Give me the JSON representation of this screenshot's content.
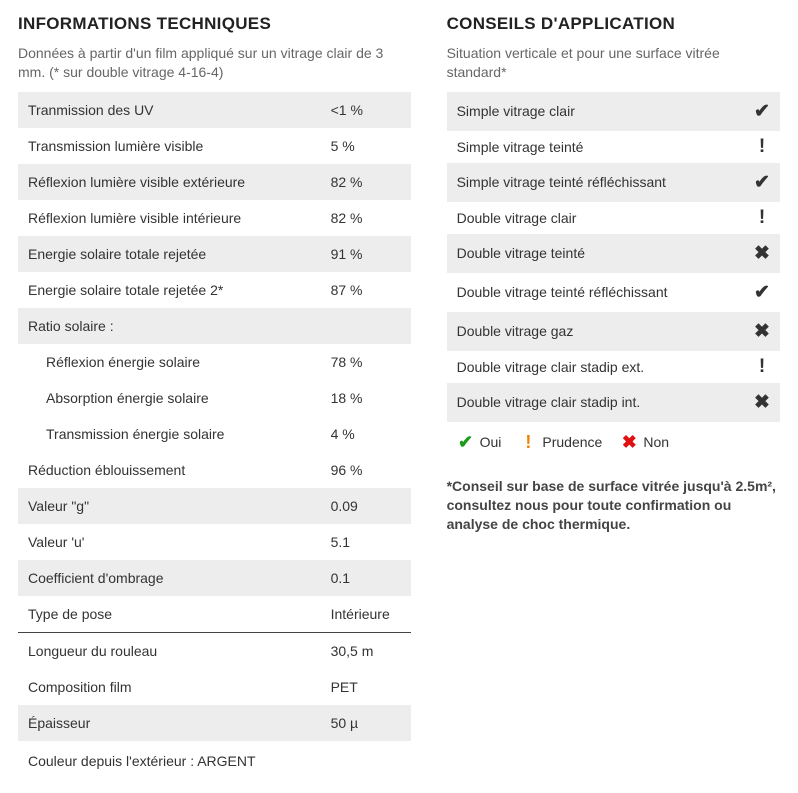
{
  "colors": {
    "yes": "#1a9b1a",
    "warn": "#f08000",
    "no": "#e01010",
    "zebra": "#ededed",
    "text": "#333333",
    "subtext": "#666666",
    "divider": "#444444"
  },
  "left": {
    "title": "INFORMATIONS TECHNIQUES",
    "subtitle": "Données à partir d'un film appliqué sur un vitrage clair de 3 mm. (* sur double vitrage 4-16-4)",
    "rows": [
      {
        "label": "Tranmission des UV",
        "value": "<1 %",
        "zebra": true
      },
      {
        "label": "Transmission lumière visible",
        "value": "5 %",
        "zebra": false
      },
      {
        "label": "Réflexion lumière visible extérieure",
        "value": "82 %",
        "zebra": true
      },
      {
        "label": "Réflexion lumière visible intérieure",
        "value": "82 %",
        "zebra": false
      },
      {
        "label": "Energie solaire totale rejetée",
        "value": "91 %",
        "zebra": true
      },
      {
        "label": "Energie solaire totale rejetée 2*",
        "value": "87 %",
        "zebra": false
      },
      {
        "label": "Ratio solaire :",
        "value": "",
        "zebra": true
      },
      {
        "label": "Réflexion énergie solaire",
        "value": "78 %",
        "zebra": false,
        "indent": true
      },
      {
        "label": "Absorption énergie solaire",
        "value": "18 %",
        "zebra": false,
        "indent": true
      },
      {
        "label": "Transmission énergie solaire",
        "value": "4 %",
        "zebra": false,
        "indent": true
      },
      {
        "label": "Réduction éblouissement",
        "value": "96 %",
        "zebra": false
      },
      {
        "label": "Valeur \"g\"",
        "value": "0.09",
        "zebra": true
      },
      {
        "label": "Valeur 'u'",
        "value": "5.1",
        "zebra": false
      },
      {
        "label": "Coefficient d'ombrage",
        "value": "0.1",
        "zebra": true
      },
      {
        "label": "Type de pose",
        "value": "Intérieure",
        "zebra": false
      },
      {
        "label": "Longueur du rouleau",
        "value": "30,5 m",
        "zebra": false,
        "divider": true
      },
      {
        "label": "Composition film",
        "value": "PET",
        "zebra": false
      },
      {
        "label": "Épaisseur",
        "value": "50 µ",
        "zebra": true
      }
    ],
    "footer": "Couleur depuis l'extérieur : ARGENT"
  },
  "right": {
    "title": "CONSEILS D'APPLICATION",
    "subtitle": "Situation verticale et pour une surface vitrée standard*",
    "rows": [
      {
        "label": "Simple vitrage clair",
        "status": "yes",
        "zebra": true
      },
      {
        "label": "Simple vitrage teinté",
        "status": "warn",
        "zebra": false
      },
      {
        "label": "Simple vitrage teinté réfléchissant",
        "status": "yes",
        "zebra": true
      },
      {
        "label": "Double vitrage clair",
        "status": "warn",
        "zebra": false
      },
      {
        "label": "Double vitrage teinté",
        "status": "no",
        "zebra": true
      },
      {
        "label": "Double vitrage teinté réfléchissant",
        "status": "yes",
        "zebra": false
      },
      {
        "label": "Double vitrage gaz",
        "status": "no",
        "zebra": true
      },
      {
        "label": "Double vitrage clair stadip ext.",
        "status": "warn",
        "zebra": false
      },
      {
        "label": "Double vitrage clair stadip int.",
        "status": "no",
        "zebra": true
      }
    ],
    "legend": {
      "yes": "Oui",
      "warn": "Prudence",
      "no": "Non"
    },
    "footnote": "*Conseil sur base de surface vitrée jusqu'à 2.5m², consultez nous pour toute confirmation ou analyse de choc thermique."
  },
  "icons": {
    "yes": "✔",
    "warn": "!",
    "no": "✖"
  }
}
